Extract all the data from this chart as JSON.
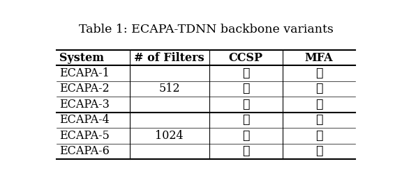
{
  "title": "Table 1: ECAPA-TDNN backbone variants",
  "headers": [
    "System",
    "# of Filters",
    "CCSP",
    "MFA"
  ],
  "rows": [
    [
      "ECAPA-1",
      "",
      "✓",
      "✗"
    ],
    [
      "ECAPA-2",
      "512",
      "✗",
      "✓"
    ],
    [
      "ECAPA-3",
      "",
      "✓",
      "✓"
    ],
    [
      "ECAPA-4",
      "",
      "✓",
      "✗"
    ],
    [
      "ECAPA-5",
      "1024",
      "✗",
      "✓"
    ],
    [
      "ECAPA-6",
      "",
      "✓",
      "✓"
    ]
  ],
  "group_labels": [
    "512",
    "1024"
  ],
  "background_color": "#ffffff",
  "text_color": "#000000",
  "header_fontsize": 11.5,
  "cell_fontsize": 11.5,
  "title_fontsize": 12.5
}
